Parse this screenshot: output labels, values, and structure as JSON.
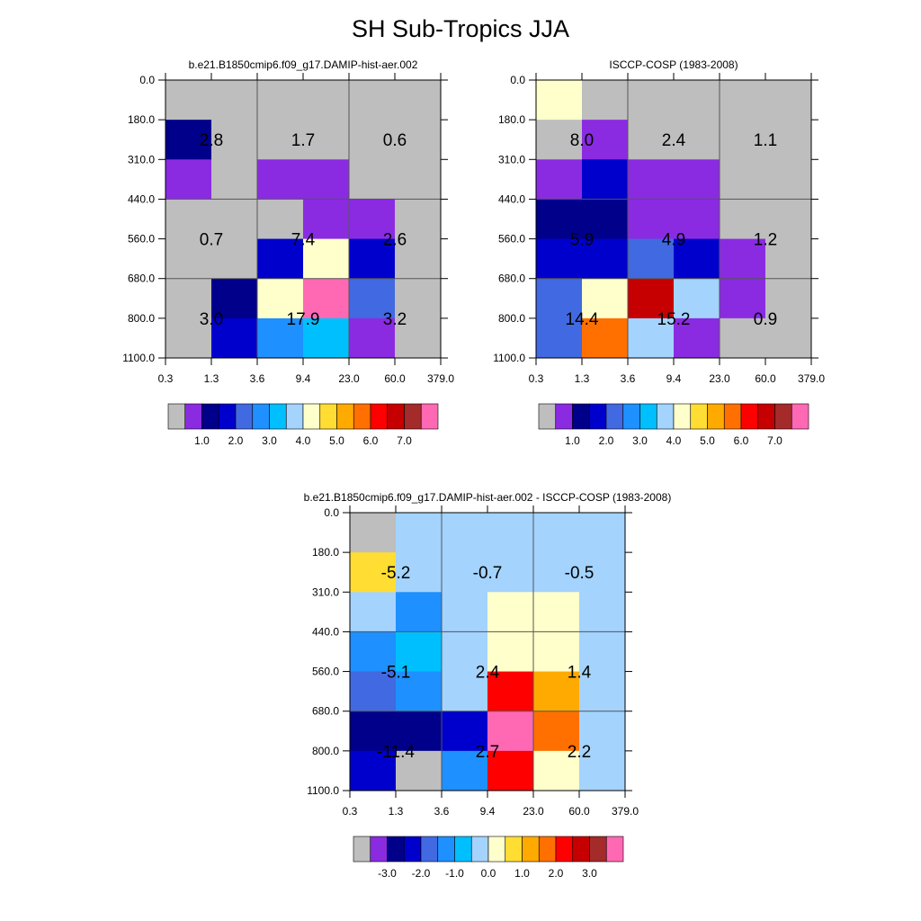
{
  "figure_title": "SH Sub-Tropics JJA",
  "palette": [
    "#bebebe",
    "#8a2be2",
    "#00008b",
    "#0000cd",
    "#4169e1",
    "#1e90ff",
    "#00bfff",
    "#a4d3fe",
    "#ffffcc",
    "#ffdd33",
    "#ffaa00",
    "#ff7000",
    "#ff0000",
    "#c60000",
    "#a52a2a",
    "#ff69b4"
  ],
  "chart_data": [
    {
      "type": "heatmap",
      "title": "b.e21.B1850cmip6.f09_g17.DAMIP-hist-aer.002",
      "x_tick_labels": [
        "0.3",
        "1.3",
        "3.6",
        "9.4",
        "23.0",
        "60.0",
        "379.0"
      ],
      "y_tick_labels": [
        "0.0",
        "180.0",
        "310.0",
        "440.0",
        "560.0",
        "680.0",
        "800.0",
        "1100.0"
      ],
      "cell_color_index": [
        [
          0,
          0,
          0,
          0,
          0,
          0
        ],
        [
          2,
          0,
          0,
          0,
          0,
          0
        ],
        [
          1,
          0,
          1,
          1,
          0,
          0
        ],
        [
          0,
          0,
          0,
          1,
          1,
          0
        ],
        [
          0,
          0,
          3,
          8,
          3,
          0
        ],
        [
          0,
          2,
          8,
          15,
          4,
          0
        ],
        [
          0,
          3,
          5,
          6,
          1,
          0
        ]
      ],
      "block_labels": [
        {
          "row": 0,
          "col": 0,
          "text": "2.8"
        },
        {
          "row": 0,
          "col": 1,
          "text": "1.7"
        },
        {
          "row": 0,
          "col": 2,
          "text": "0.6"
        },
        {
          "row": 1,
          "col": 0,
          "text": "0.7"
        },
        {
          "row": 1,
          "col": 1,
          "text": "7.4"
        },
        {
          "row": 1,
          "col": 2,
          "text": "2.6"
        },
        {
          "row": 2,
          "col": 0,
          "text": "3.0"
        },
        {
          "row": 2,
          "col": 1,
          "text": "17.9"
        },
        {
          "row": 2,
          "col": 2,
          "text": "3.2"
        }
      ],
      "colorbar_labels": [
        "1.0",
        "2.0",
        "3.0",
        "4.0",
        "5.0",
        "6.0",
        "7.0"
      ]
    },
    {
      "type": "heatmap",
      "title": "ISCCP-COSP (1983-2008)",
      "x_tick_labels": [
        "0.3",
        "1.3",
        "3.6",
        "9.4",
        "23.0",
        "60.0",
        "379.0"
      ],
      "y_tick_labels": [
        "0.0",
        "180.0",
        "310.0",
        "440.0",
        "560.0",
        "680.0",
        "800.0",
        "1100.0"
      ],
      "cell_color_index": [
        [
          8,
          0,
          0,
          0,
          0,
          0
        ],
        [
          0,
          1,
          0,
          0,
          0,
          0
        ],
        [
          1,
          3,
          1,
          1,
          0,
          0
        ],
        [
          2,
          2,
          1,
          1,
          0,
          0
        ],
        [
          3,
          3,
          4,
          3,
          1,
          0
        ],
        [
          4,
          8,
          13,
          7,
          1,
          0
        ],
        [
          4,
          11,
          7,
          1,
          0,
          0
        ]
      ],
      "block_labels": [
        {
          "row": 0,
          "col": 0,
          "text": "8.0"
        },
        {
          "row": 0,
          "col": 1,
          "text": "2.4"
        },
        {
          "row": 0,
          "col": 2,
          "text": "1.1"
        },
        {
          "row": 1,
          "col": 0,
          "text": "5.9"
        },
        {
          "row": 1,
          "col": 1,
          "text": "4.9"
        },
        {
          "row": 1,
          "col": 2,
          "text": "1.2"
        },
        {
          "row": 2,
          "col": 0,
          "text": "14.4"
        },
        {
          "row": 2,
          "col": 1,
          "text": "15.2"
        },
        {
          "row": 2,
          "col": 2,
          "text": "0.9"
        }
      ],
      "colorbar_labels": [
        "1.0",
        "2.0",
        "3.0",
        "4.0",
        "5.0",
        "6.0",
        "7.0"
      ]
    },
    {
      "type": "heatmap",
      "title": "b.e21.B1850cmip6.f09_g17.DAMIP-hist-aer.002 - ISCCP-COSP (1983-2008)",
      "x_tick_labels": [
        "0.3",
        "1.3",
        "3.6",
        "9.4",
        "23.0",
        "60.0",
        "379.0"
      ],
      "y_tick_labels": [
        "0.0",
        "180.0",
        "310.0",
        "440.0",
        "560.0",
        "680.0",
        "800.0",
        "1100.0"
      ],
      "cell_color_index": [
        [
          0,
          7,
          7,
          7,
          7,
          7
        ],
        [
          9,
          7,
          7,
          7,
          7,
          7
        ],
        [
          7,
          5,
          7,
          8,
          8,
          7
        ],
        [
          5,
          6,
          7,
          8,
          8,
          7
        ],
        [
          4,
          5,
          7,
          12,
          10,
          7
        ],
        [
          2,
          2,
          3,
          15,
          11,
          7
        ],
        [
          3,
          0,
          5,
          12,
          8,
          7
        ]
      ],
      "block_labels": [
        {
          "row": 0,
          "col": 0,
          "text": "-5.2"
        },
        {
          "row": 0,
          "col": 1,
          "text": "-0.7"
        },
        {
          "row": 0,
          "col": 2,
          "text": "-0.5"
        },
        {
          "row": 1,
          "col": 0,
          "text": "-5.1"
        },
        {
          "row": 1,
          "col": 1,
          "text": "2.4"
        },
        {
          "row": 1,
          "col": 2,
          "text": "1.4"
        },
        {
          "row": 2,
          "col": 0,
          "text": "-11.4"
        },
        {
          "row": 2,
          "col": 1,
          "text": "2.7"
        },
        {
          "row": 2,
          "col": 2,
          "text": "2.2"
        }
      ],
      "colorbar_labels": [
        "-3.0",
        "-2.0",
        "-1.0",
        "0.0",
        "1.0",
        "2.0",
        "3.0"
      ]
    }
  ]
}
